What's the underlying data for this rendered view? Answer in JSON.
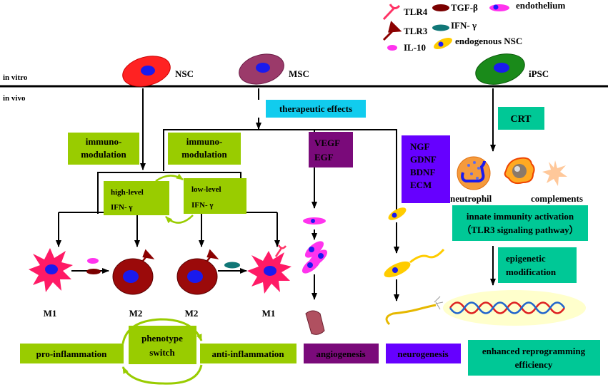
{
  "colors": {
    "green": "#99cc00",
    "teal": "#00c896",
    "cyan": "#11ccee",
    "purple": "#7a0a7a",
    "violet": "#6600ff"
  },
  "legend": {
    "tlr4": "TLR4",
    "tgfb": "TGF-β",
    "endothelium": "endothelium",
    "tlr3": "TLR3",
    "ifng": "IFN- γ",
    "il10": "IL-10",
    "endo_nsc": "endogenous NSC"
  },
  "axis": {
    "in_vitro": "in vitro",
    "in_vivo": "in vivo"
  },
  "cells": {
    "nsc": "NSC",
    "msc": "MSC",
    "ipsc": "iPSC"
  },
  "therapeutic": "therapeutic effects",
  "immuno1": [
    "immuno-",
    "modulation"
  ],
  "immuno2": [
    "immuno-",
    "modulation"
  ],
  "high": [
    "high-level",
    "IFN- γ"
  ],
  "low": [
    "low-level",
    "IFN- γ"
  ],
  "macrophages": [
    "M1",
    "M2",
    "M2",
    "M1"
  ],
  "vegf": [
    "VEGF",
    "EGF"
  ],
  "ngf": [
    "NGF",
    "GDNF",
    "BDNF",
    "ECM"
  ],
  "crt": "CRT",
  "neutrophil": "neutrophil",
  "complements": "complements",
  "innate": [
    "innate immunity activation",
    "（TLR3 signaling pathway）"
  ],
  "epigenetic": [
    "epigenetic",
    "modification"
  ],
  "outcomes": {
    "pro": "pro-inflammation",
    "switch": [
      "phenotype",
      "switch"
    ],
    "anti": "anti-inflammation",
    "angio": "angiogenesis",
    "neuro": "neurogenesis",
    "reprog": [
      "enhanced reprogramming",
      "efficiency"
    ]
  }
}
